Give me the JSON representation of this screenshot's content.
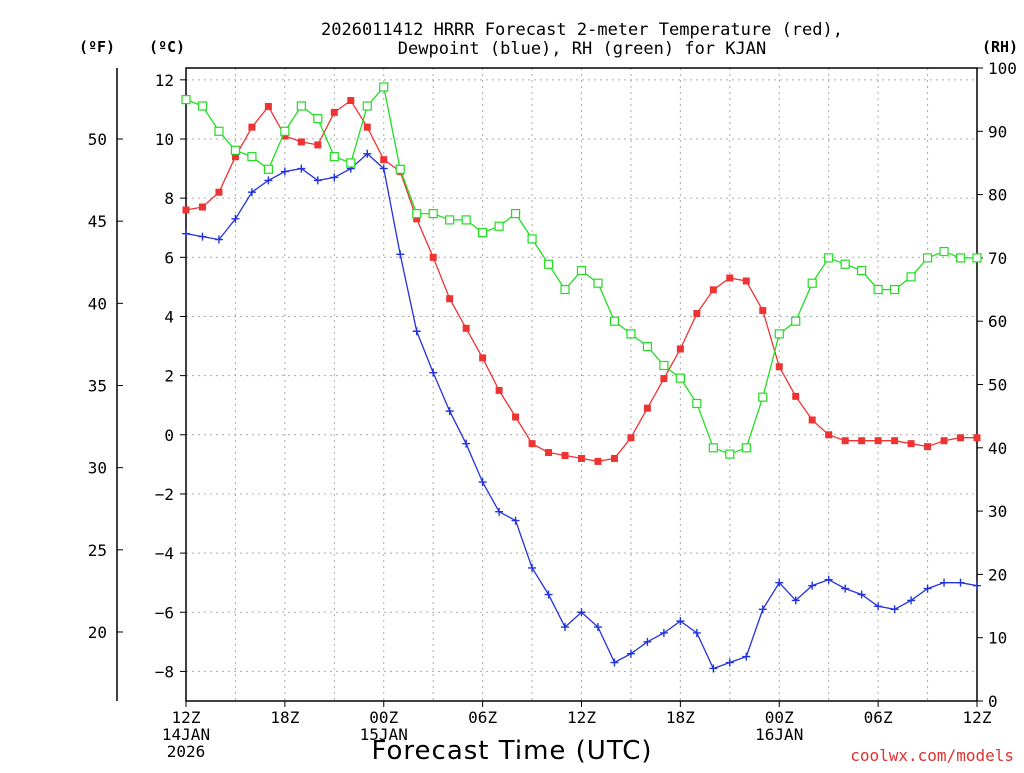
{
  "chart_data": {
    "type": "line",
    "title_line1": "2026011412 HRRR Forecast 2-meter Temperature (red),",
    "title_line2": "Dewpoint (blue), RH (green) for KJAN",
    "xlabel": "Forecast Time (UTC)",
    "credit": "coolwx.com/models",
    "units": {
      "fahrenheit": "(ºF)",
      "celsius": "(ºC)",
      "rh": "(RH)"
    },
    "x": [
      0,
      1,
      2,
      3,
      4,
      5,
      6,
      7,
      8,
      9,
      10,
      11,
      12,
      13,
      14,
      15,
      16,
      17,
      18,
      19,
      20,
      21,
      22,
      23,
      24,
      25,
      26,
      27,
      28,
      29,
      30,
      31,
      32,
      33,
      34,
      35,
      36,
      37,
      38,
      39,
      40,
      41,
      42,
      43,
      44,
      45,
      46,
      47,
      48
    ],
    "xlim": [
      0,
      48
    ],
    "x_ticks": [
      {
        "x": 0,
        "lines": [
          "12Z",
          "14JAN",
          "2026"
        ]
      },
      {
        "x": 6,
        "lines": [
          "18Z"
        ]
      },
      {
        "x": 12,
        "lines": [
          "00Z",
          "15JAN"
        ]
      },
      {
        "x": 18,
        "lines": [
          "06Z"
        ]
      },
      {
        "x": 24,
        "lines": [
          "12Z"
        ]
      },
      {
        "x": 30,
        "lines": [
          "18Z"
        ]
      },
      {
        "x": 36,
        "lines": [
          "00Z",
          "16JAN"
        ]
      },
      {
        "x": 42,
        "lines": [
          "06Z"
        ]
      },
      {
        "x": 48,
        "lines": [
          "12Z"
        ]
      }
    ],
    "y_celsius": {
      "lim": [
        -9,
        12.4
      ],
      "ticks": [
        12,
        10,
        8,
        6,
        4,
        2,
        0,
        -2,
        -4,
        -6,
        -8
      ],
      "labels": [
        "12",
        "10",
        "8",
        "6",
        "4",
        "2",
        "0",
        "−2",
        "−4",
        "−6",
        "−8"
      ]
    },
    "y_fahrenheit": {
      "ticks": [
        50,
        45,
        40,
        35,
        30,
        25,
        20
      ],
      "labels": [
        "50",
        "45",
        "40",
        "35",
        "30",
        "25",
        "20"
      ]
    },
    "y_rh": {
      "lim": [
        0,
        100
      ],
      "ticks": [
        100,
        90,
        80,
        70,
        60,
        50,
        40,
        30,
        20,
        10,
        0
      ],
      "labels": [
        "100",
        "90",
        "80",
        "70",
        "60",
        "50",
        "40",
        "30",
        "20",
        "10",
        "0"
      ]
    },
    "grid": true,
    "series": [
      {
        "name": "Temperature",
        "axis": "celsius",
        "color": "#ee3333",
        "marker": "filled-square",
        "values": [
          7.6,
          7.7,
          8.2,
          9.4,
          10.4,
          11.1,
          10.1,
          9.9,
          9.8,
          10.9,
          11.3,
          10.4,
          9.3,
          8.9,
          7.3,
          6.0,
          4.6,
          3.6,
          2.6,
          1.5,
          0.6,
          -0.3,
          -0.6,
          -0.7,
          -0.8,
          -0.9,
          -0.8,
          -0.1,
          0.9,
          1.9,
          2.9,
          4.1,
          4.9,
          5.3,
          5.2,
          4.2,
          2.3,
          1.3,
          0.5,
          0.0,
          -0.2,
          -0.2,
          -0.2,
          -0.2,
          -0.3,
          -0.4,
          -0.2,
          -0.1,
          -0.1
        ]
      },
      {
        "name": "Dewpoint",
        "axis": "celsius",
        "color": "#2233dd",
        "marker": "plus",
        "values": [
          6.8,
          6.7,
          6.6,
          7.3,
          8.2,
          8.6,
          8.9,
          9.0,
          8.6,
          8.7,
          9.0,
          9.5,
          9.0,
          6.1,
          3.5,
          2.1,
          0.8,
          -0.3,
          -1.6,
          -2.6,
          -2.9,
          -4.5,
          -5.4,
          -6.5,
          -6.0,
          -6.5,
          -7.7,
          -7.4,
          -7.0,
          -6.7,
          -6.3,
          -6.7,
          -7.9,
          -7.7,
          -7.5,
          -5.9,
          -5.0,
          -5.6,
          -5.1,
          -4.9,
          -5.2,
          -5.4,
          -5.8,
          -5.9,
          -5.6,
          -5.2,
          -5.0,
          -5.0,
          -5.1
        ]
      },
      {
        "name": "RH",
        "axis": "rh",
        "color": "#22dd22",
        "marker": "open-square",
        "values": [
          95,
          94,
          90,
          87,
          86,
          84,
          90,
          94,
          92,
          86,
          85,
          94,
          97,
          84,
          77,
          77,
          76,
          76,
          74,
          75,
          77,
          73,
          69,
          65,
          68,
          66,
          60,
          58,
          56,
          53,
          51,
          47,
          40,
          39,
          40,
          48,
          58,
          60,
          66,
          70,
          69,
          68,
          65,
          65,
          67,
          70,
          71,
          70,
          70
        ]
      }
    ]
  }
}
